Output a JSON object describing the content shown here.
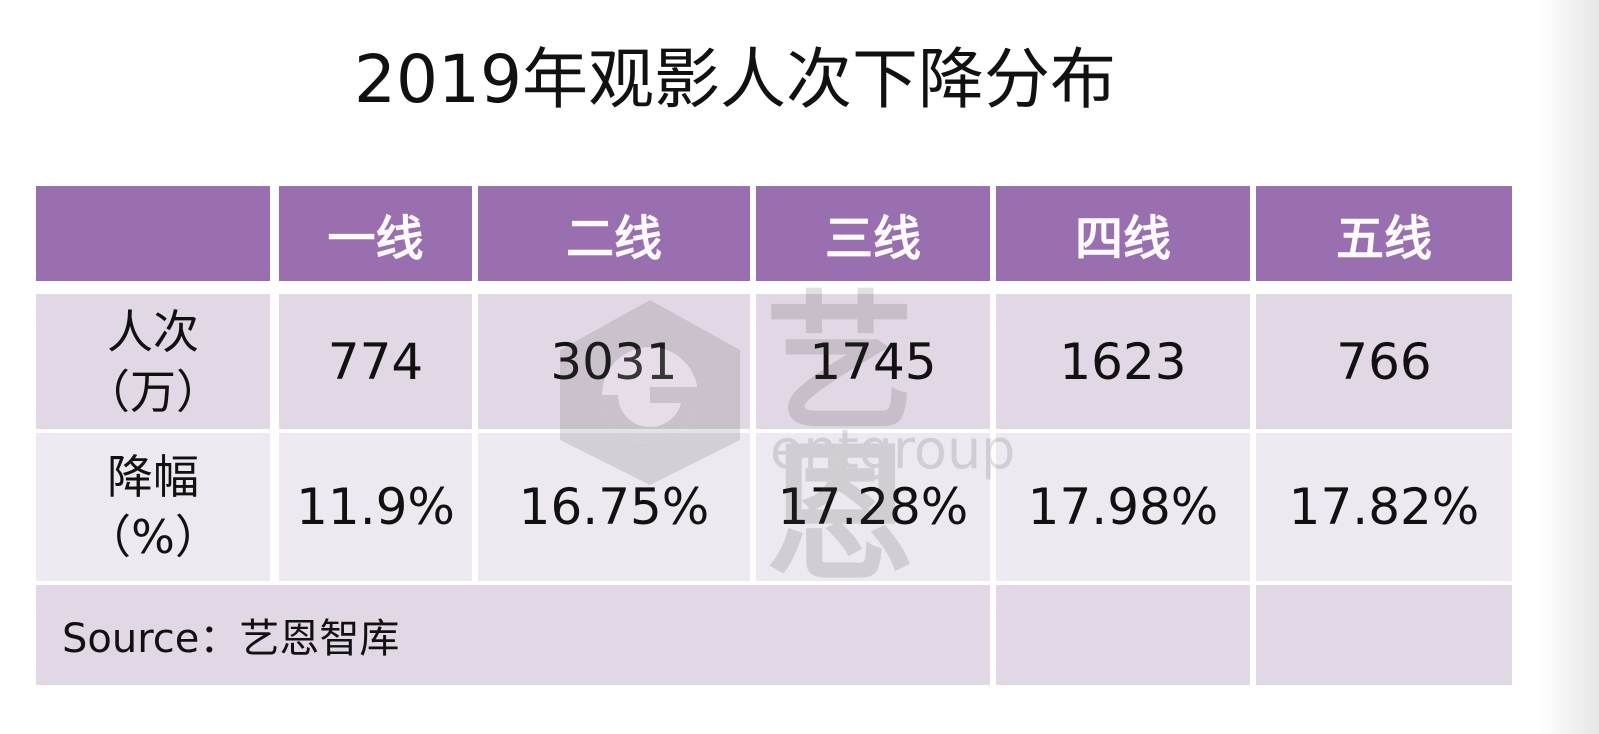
{
  "title": "2019年观影人次下降分布",
  "chart_data": {
    "type": "table",
    "title": "2019年观影人次下降分布",
    "columns": [
      "",
      "一线",
      "二线",
      "三线",
      "四线",
      "五线"
    ],
    "rows": [
      {
        "label": [
          "人次",
          "（万）"
        ],
        "values": [
          "774",
          "3031",
          "1745",
          "1623",
          "766"
        ]
      },
      {
        "label": [
          "降幅",
          "（%）"
        ],
        "values": [
          "11.9%",
          "16.75%",
          "17.28%",
          "17.98%",
          "17.82%"
        ]
      }
    ],
    "source": "Source：艺恩智库"
  },
  "watermark": {
    "brand": "艺恩",
    "sub": "entgroup"
  },
  "colors": {
    "header": "#9a6fb0",
    "row1": "#e2d7e5",
    "row2": "#eee8f0"
  }
}
